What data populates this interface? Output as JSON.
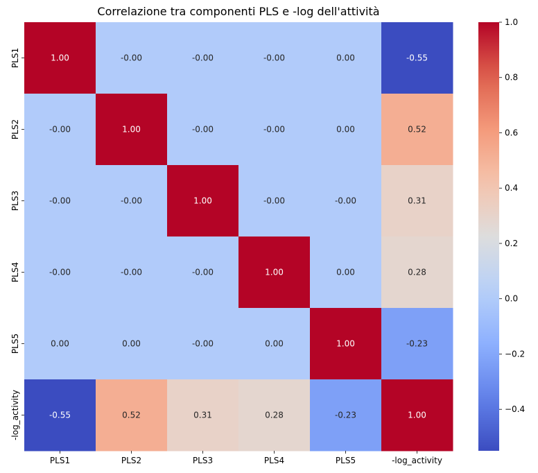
{
  "chart_data": {
    "type": "heatmap",
    "title": "Correlazione tra componenti PLS e -log dell'attività",
    "row_labels": [
      "PLS1",
      "PLS2",
      "PLS3",
      "PLS4",
      "PLS5",
      "-log_activity"
    ],
    "col_labels": [
      "PLS1",
      "PLS2",
      "PLS3",
      "PLS4",
      "PLS5",
      "-log_activity"
    ],
    "values": [
      [
        1.0,
        -0.0,
        -0.0,
        -0.0,
        0.0,
        -0.55
      ],
      [
        -0.0,
        1.0,
        -0.0,
        -0.0,
        0.0,
        0.52
      ],
      [
        -0.0,
        -0.0,
        1.0,
        -0.0,
        -0.0,
        0.31
      ],
      [
        -0.0,
        -0.0,
        -0.0,
        1.0,
        0.0,
        0.28
      ],
      [
        0.0,
        0.0,
        -0.0,
        0.0,
        1.0,
        -0.23
      ],
      [
        -0.55,
        0.52,
        0.31,
        0.28,
        -0.23,
        1.0
      ]
    ],
    "cell_text": [
      [
        "1.00",
        "-0.00",
        "-0.00",
        "-0.00",
        "0.00",
        "-0.55"
      ],
      [
        "-0.00",
        "1.00",
        "-0.00",
        "-0.00",
        "0.00",
        "0.52"
      ],
      [
        "-0.00",
        "-0.00",
        "1.00",
        "-0.00",
        "-0.00",
        "0.31"
      ],
      [
        "-0.00",
        "-0.00",
        "-0.00",
        "1.00",
        "0.00",
        "0.28"
      ],
      [
        "0.00",
        "0.00",
        "-0.00",
        "0.00",
        "1.00",
        "-0.23"
      ],
      [
        "-0.55",
        "0.52",
        "0.31",
        "0.28",
        "-0.23",
        "1.00"
      ]
    ],
    "colormap": "coolwarm",
    "vmin": -0.55,
    "vmax": 1.0,
    "colorbar_ticks": [
      "1.0",
      "0.8",
      "0.6",
      "0.4",
      "0.2",
      "0.0",
      "−0.2",
      "−0.4"
    ],
    "colorbar_tick_values": [
      1.0,
      0.8,
      0.6,
      0.4,
      0.2,
      0.0,
      -0.2,
      -0.4
    ]
  }
}
